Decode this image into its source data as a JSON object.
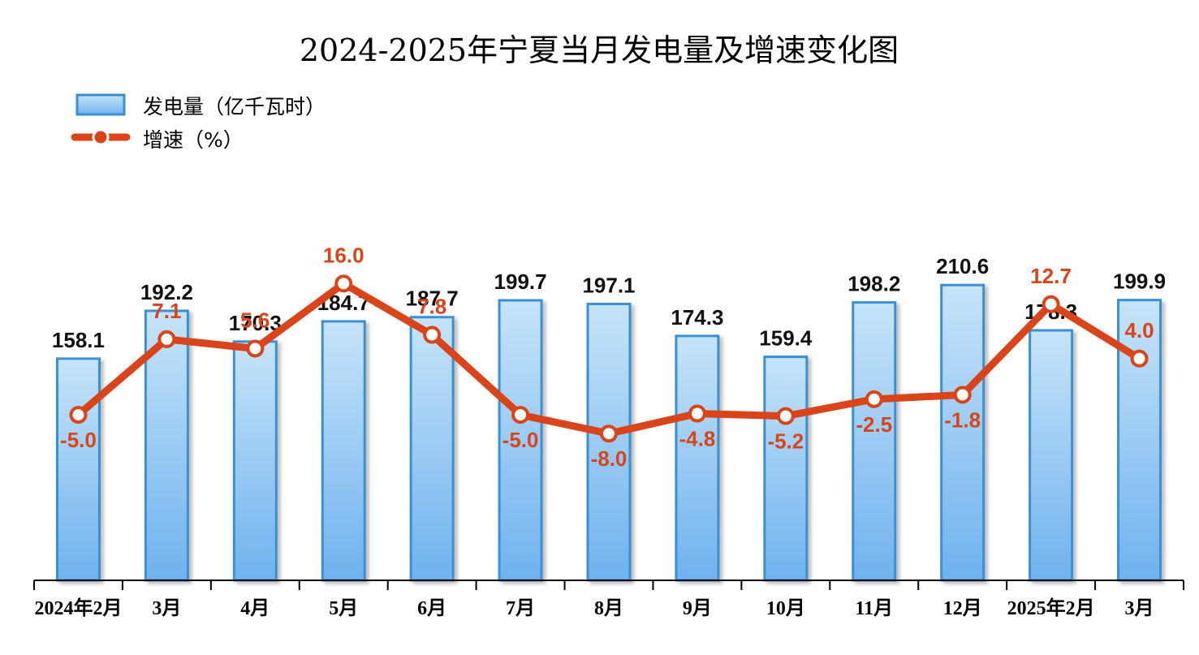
{
  "chart_data": {
    "type": "bar",
    "title": "2024-2025年宁夏当月发电量及增速变化图",
    "categories": [
      "2024年2月",
      "3月",
      "4月",
      "5月",
      "6月",
      "7月",
      "8月",
      "9月",
      "10月",
      "11月",
      "12月",
      "2025年2月",
      "3月"
    ],
    "series": [
      {
        "name": "发电量（亿千瓦时）",
        "type": "bar",
        "values": [
          158.1,
          192.2,
          170.3,
          184.7,
          187.7,
          199.7,
          197.1,
          174.3,
          159.4,
          198.2,
          210.6,
          178.3,
          199.9
        ],
        "labels": [
          "158.1",
          "192.2",
          "170.3",
          "184.7",
          "187.7",
          "199.7",
          "197.1",
          "174.3",
          "159.4",
          "198.2",
          "210.6",
          "178.3",
          "199.9"
        ]
      },
      {
        "name": "增速（%）",
        "type": "line",
        "values": [
          -5.0,
          7.1,
          5.6,
          16.0,
          7.8,
          -5.0,
          -8.0,
          -4.8,
          -5.2,
          -2.5,
          -1.8,
          12.7,
          4.0
        ],
        "labels": [
          "-5.0",
          "7.1",
          "5.6",
          "16.0",
          "7.8",
          "-5.0",
          "-8.0",
          "-4.8",
          "-5.2",
          "-2.5",
          "-1.8",
          "12.7",
          "4.0"
        ]
      }
    ],
    "legend_position": "top-left",
    "grid": false,
    "colors": {
      "bar_top": "#c6e4f9",
      "bar_bottom": "#6fb2ee",
      "bar_border": "#3a8fd3",
      "line": "#d9441a",
      "marker_fill": "#ffffff"
    }
  }
}
